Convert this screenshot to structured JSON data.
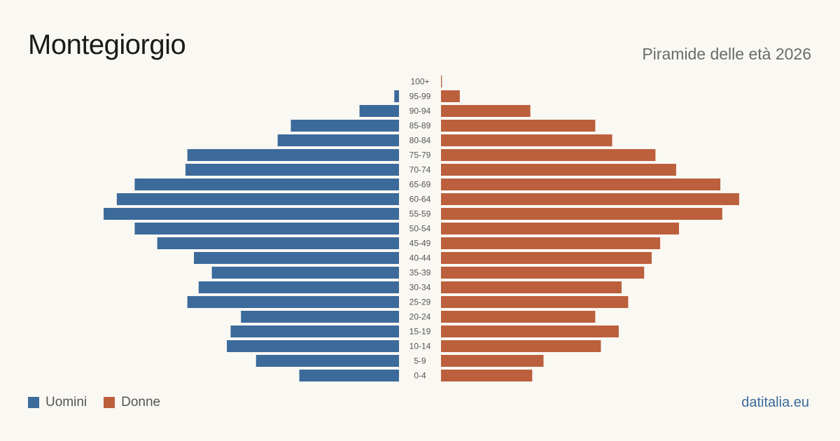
{
  "header": {
    "title": "Montegiorgio",
    "subtitle": "Piramide delle età 2026"
  },
  "footer": {
    "source": "datitalia.eu"
  },
  "colors": {
    "men": "#3b6a9b",
    "women": "#bc5f3d",
    "label": "#555555"
  },
  "chart_data": {
    "type": "bar",
    "orientation": "horizontal-pyramid",
    "categories": [
      "100+",
      "95-99",
      "90-94",
      "85-89",
      "80-84",
      "75-79",
      "70-74",
      "65-69",
      "60-64",
      "55-59",
      "50-54",
      "45-49",
      "40-44",
      "35-39",
      "30-34",
      "25-29",
      "20-24",
      "15-19",
      "10-14",
      "5-9",
      "0-4"
    ],
    "series": [
      {
        "name": "Uomini",
        "values": [
          0,
          5,
          42,
          115,
          129,
          225,
          227,
          281,
          300,
          314,
          281,
          257,
          218,
          199,
          213,
          225,
          168,
          179,
          183,
          152,
          106
        ]
      },
      {
        "name": "Donne",
        "values": [
          1,
          20,
          95,
          164,
          182,
          228,
          250,
          297,
          317,
          299,
          253,
          233,
          224,
          216,
          192,
          199,
          164,
          189,
          170,
          109,
          97
        ]
      }
    ],
    "xlim": [
      0,
      320
    ],
    "legend": "bottom-left",
    "grid": false
  }
}
